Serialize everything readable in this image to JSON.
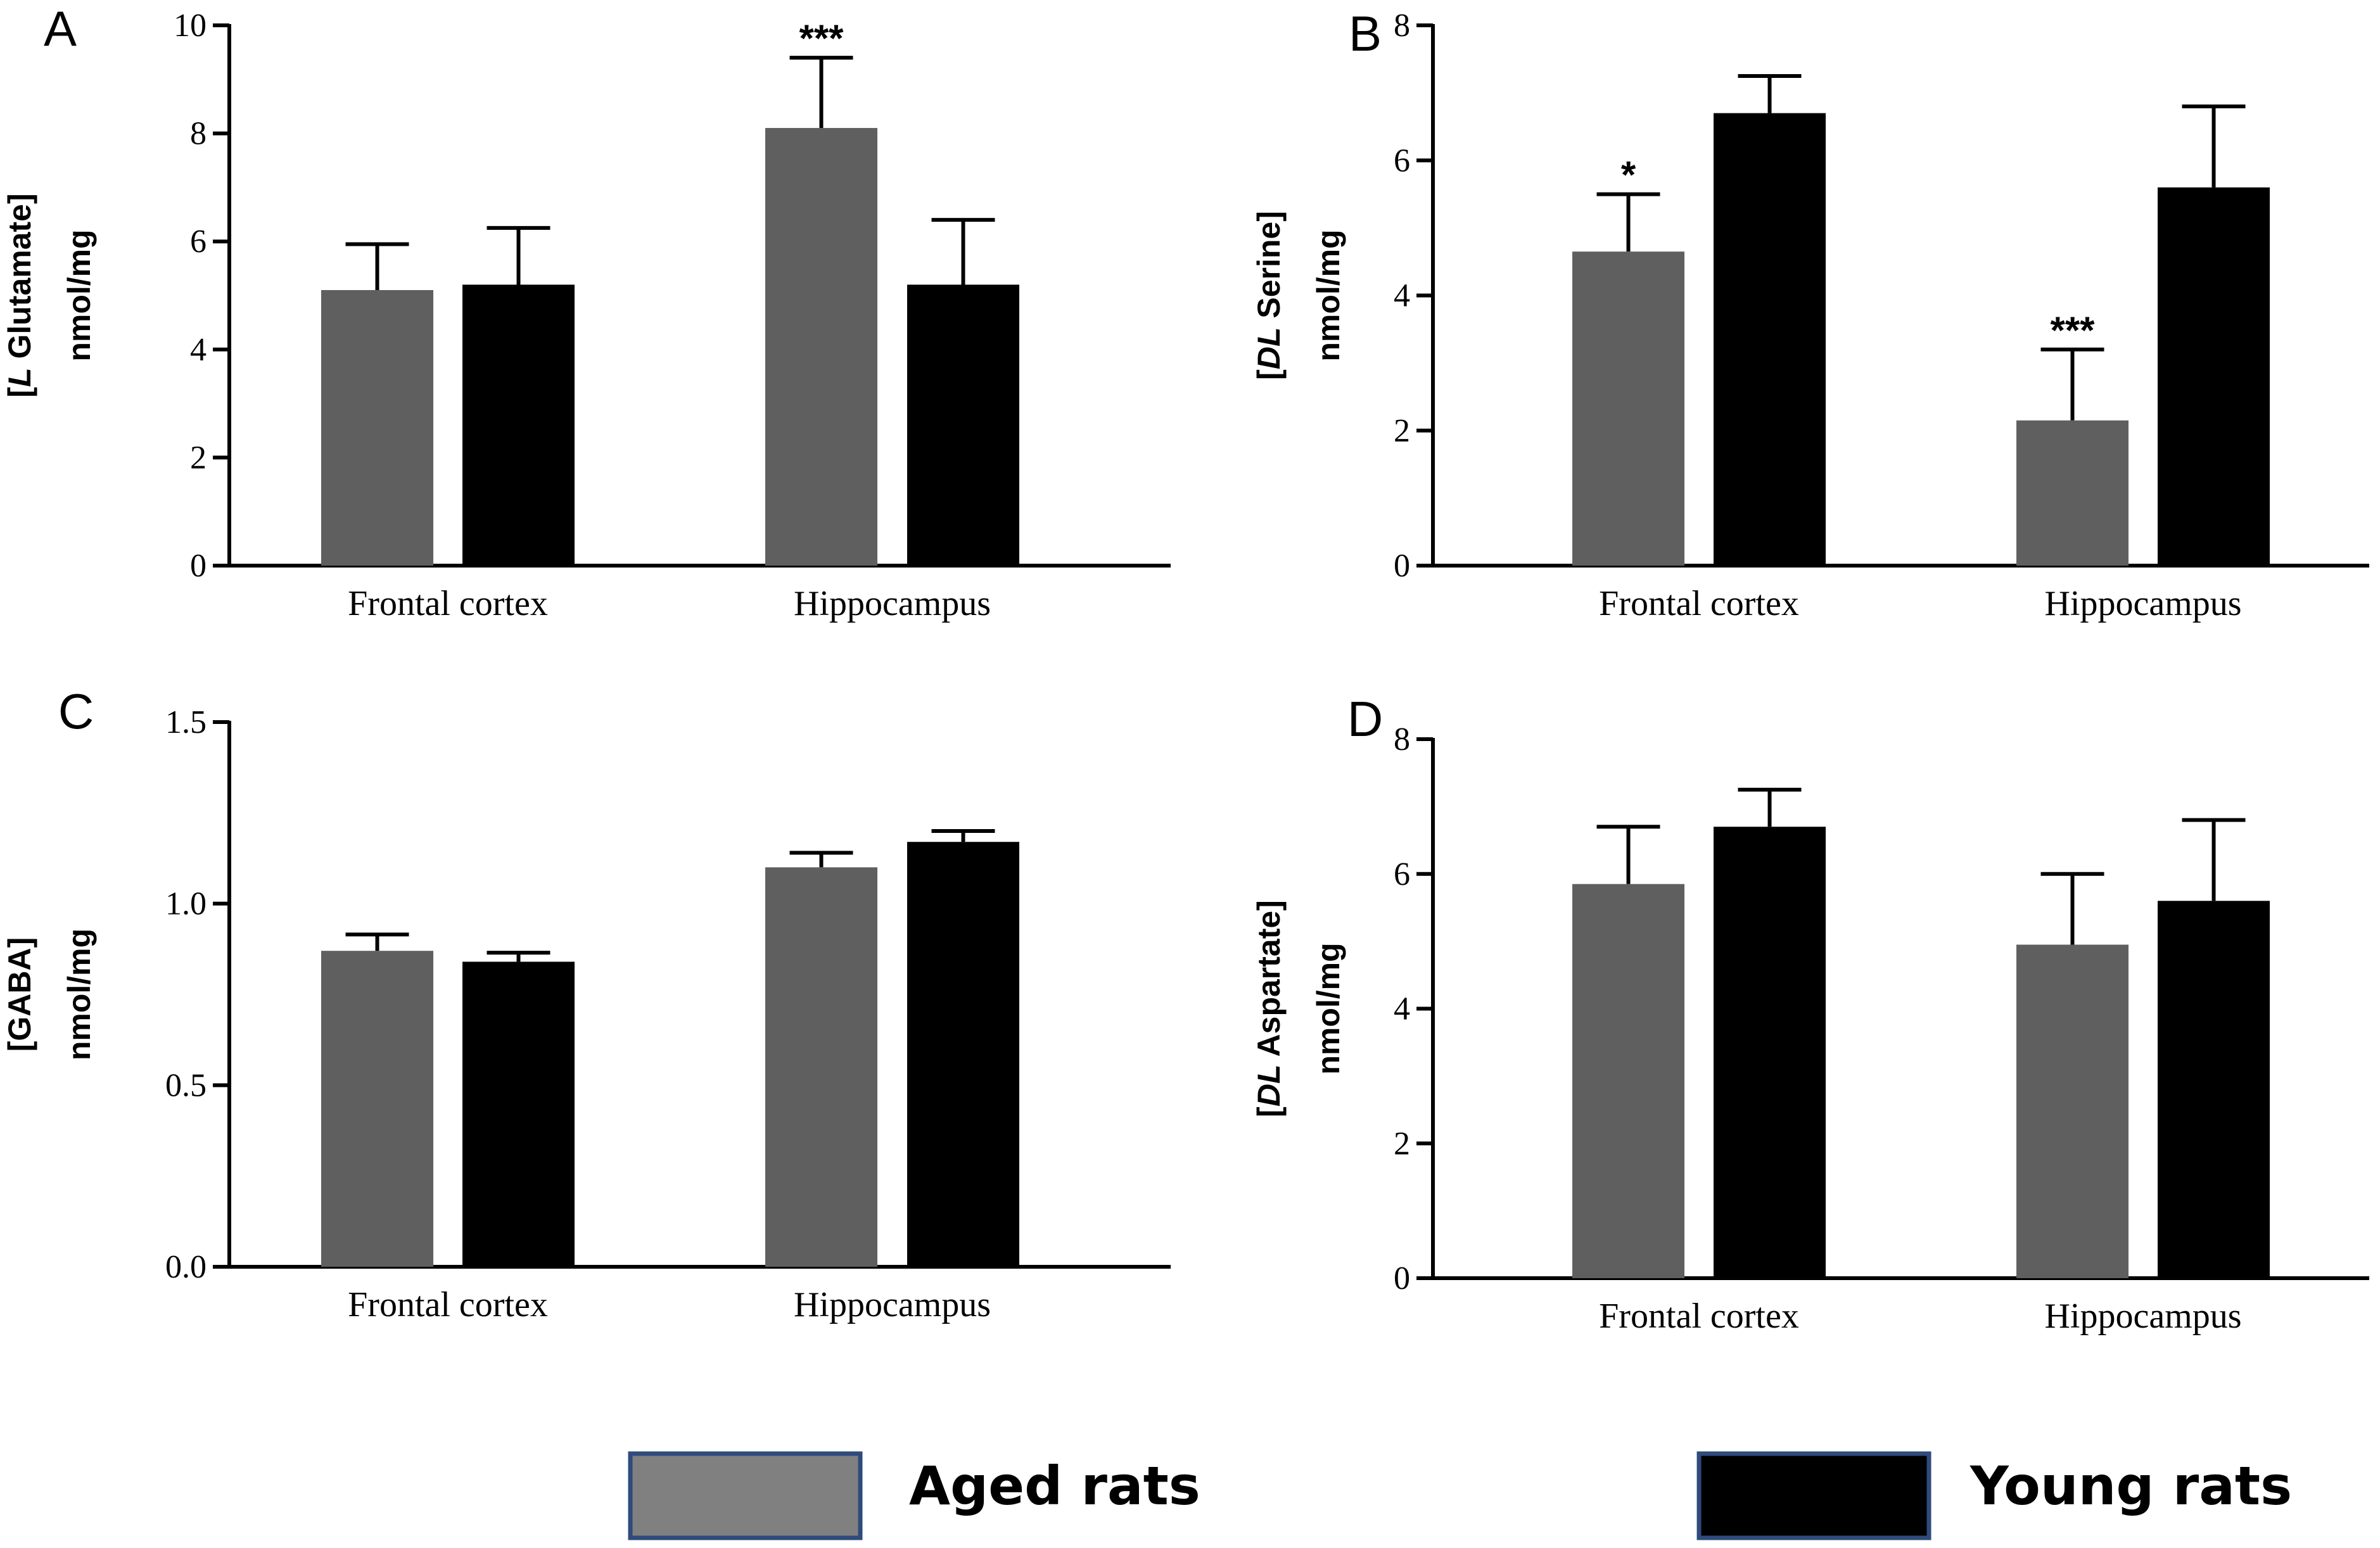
{
  "legend": [
    {
      "label": "Aged rats",
      "color": "#808080",
      "border": "#2f4b7c"
    },
    {
      "label": "Young rats",
      "color": "#000000",
      "border": "#2f4b7c"
    }
  ],
  "colors": {
    "aged": "#5f5f5f",
    "young": "#000000",
    "axis": "#000000"
  },
  "chart_data": [
    {
      "panel": "A",
      "type": "bar",
      "ylabel_line1_prefix": "[",
      "ylabel_line1_italic": "L",
      "ylabel_line1_rest": " Glutamate]",
      "ylabel_line2": "nmol/mg",
      "categories": [
        "Frontal cortex",
        "Hippocampus"
      ],
      "ylim": [
        0,
        10
      ],
      "yticks": [
        0,
        2,
        4,
        6,
        8,
        10
      ],
      "ytick_labels": [
        "0",
        "2",
        "4",
        "6",
        "8",
        "10"
      ],
      "series": [
        {
          "name": "Aged rats",
          "values": [
            5.1,
            8.1
          ],
          "errors": [
            0.85,
            1.3
          ]
        },
        {
          "name": "Young rats",
          "values": [
            5.2,
            5.2
          ],
          "errors": [
            1.05,
            1.2
          ]
        }
      ],
      "annotations": [
        {
          "series": 0,
          "category": 1,
          "text": "***"
        }
      ]
    },
    {
      "panel": "B",
      "type": "bar",
      "ylabel_line1_prefix": "[",
      "ylabel_line1_italic": "DL",
      "ylabel_line1_rest": " Serine]",
      "ylabel_line2": "nmol/mg",
      "categories": [
        "Frontal cortex",
        "Hippocampus"
      ],
      "ylim": [
        0,
        8
      ],
      "yticks": [
        0,
        2,
        4,
        6,
        8
      ],
      "ytick_labels": [
        "0",
        "2",
        "4",
        "6",
        "8"
      ],
      "series": [
        {
          "name": "Aged rats",
          "values": [
            4.65,
            2.15
          ],
          "errors": [
            0.85,
            1.05
          ]
        },
        {
          "name": "Young rats",
          "values": [
            6.7,
            5.6
          ],
          "errors": [
            0.55,
            1.2
          ]
        }
      ],
      "annotations": [
        {
          "series": 0,
          "category": 0,
          "text": "*"
        },
        {
          "series": 0,
          "category": 1,
          "text": "***"
        }
      ]
    },
    {
      "panel": "C",
      "type": "bar",
      "ylabel_line1_prefix": "[GABA]",
      "ylabel_line1_italic": "",
      "ylabel_line1_rest": "",
      "ylabel_line2": "nmol/mg",
      "categories": [
        "Frontal cortex",
        "Hippocampus"
      ],
      "ylim": [
        0,
        1.5
      ],
      "yticks": [
        0,
        0.5,
        1.0,
        1.5
      ],
      "ytick_labels": [
        "0.0",
        "0.5",
        "1.0",
        "1.5"
      ],
      "series": [
        {
          "name": "Aged rats",
          "values": [
            0.87,
            1.1
          ],
          "errors": [
            0.045,
            0.04
          ]
        },
        {
          "name": "Young rats",
          "values": [
            0.84,
            1.17
          ],
          "errors": [
            0.025,
            0.03
          ]
        }
      ],
      "annotations": []
    },
    {
      "panel": "D",
      "type": "bar",
      "ylabel_line1_prefix": "[",
      "ylabel_line1_italic": "DL",
      "ylabel_line1_rest": " Aspartate]",
      "ylabel_line2": "nmol/mg",
      "categories": [
        "Frontal cortex",
        "Hippocampus"
      ],
      "ylim": [
        0,
        8
      ],
      "yticks": [
        0,
        2,
        4,
        6,
        8
      ],
      "ytick_labels": [
        "0",
        "2",
        "4",
        "6",
        "8"
      ],
      "series": [
        {
          "name": "Aged rats",
          "values": [
            5.85,
            4.95
          ],
          "errors": [
            0.85,
            1.05
          ]
        },
        {
          "name": "Young rats",
          "values": [
            6.7,
            5.6
          ],
          "errors": [
            0.55,
            1.2
          ]
        }
      ],
      "annotations": []
    }
  ]
}
